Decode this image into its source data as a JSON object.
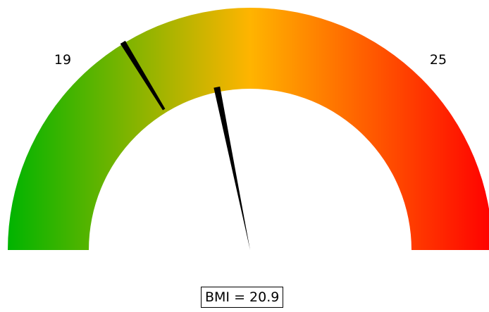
{
  "chart_data": {
    "type": "gauge",
    "value": 20.9,
    "value_label": "BMI = 20.9",
    "tick_labels": [
      "19",
      "25"
    ],
    "marks": [
      19,
      25
    ],
    "colors": [
      "#00b400",
      "#ffb400",
      "#ff0000"
    ]
  }
}
